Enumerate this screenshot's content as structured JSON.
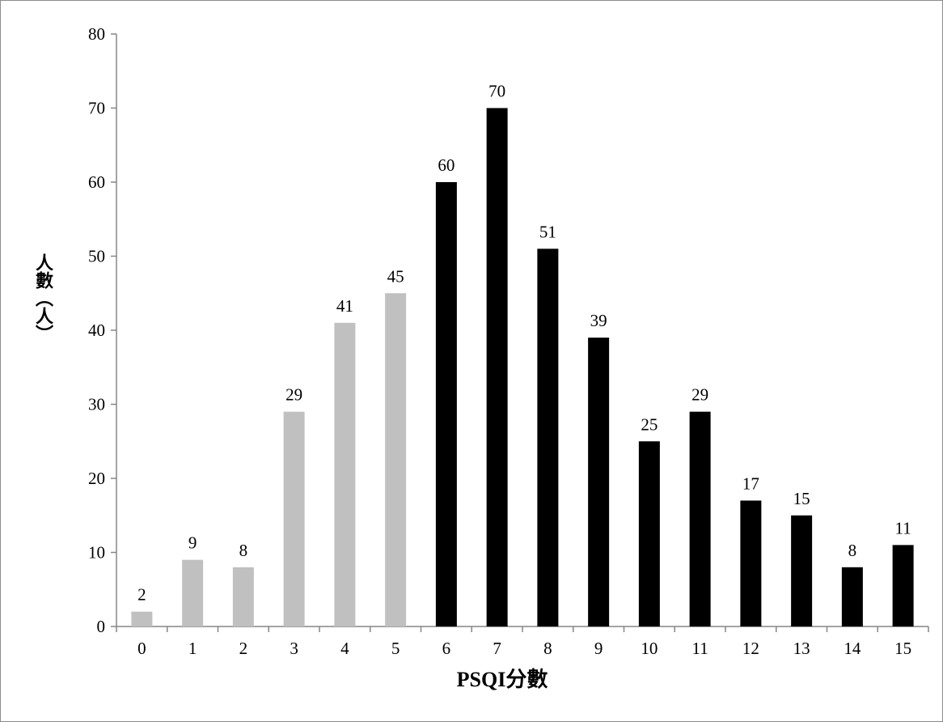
{
  "chart_data": {
    "type": "bar",
    "title": "",
    "xlabel": "PSQI分數",
    "ylabel": "人數（人）",
    "ylim": [
      0,
      80
    ],
    "yticks": [
      0,
      10,
      20,
      30,
      40,
      50,
      60,
      70,
      80
    ],
    "grid": false,
    "legend": "none",
    "categories": [
      "0",
      "1",
      "2",
      "3",
      "4",
      "5",
      "6",
      "7",
      "8",
      "9",
      "10",
      "11",
      "12",
      "13",
      "14",
      "15"
    ],
    "values": [
      2,
      9,
      8,
      29,
      41,
      45,
      60,
      70,
      51,
      39,
      25,
      29,
      17,
      15,
      8,
      11
    ],
    "bar_colors": [
      "#c0c0c0",
      "#c0c0c0",
      "#c0c0c0",
      "#c0c0c0",
      "#c0c0c0",
      "#c0c0c0",
      "#000000",
      "#000000",
      "#000000",
      "#000000",
      "#000000",
      "#000000",
      "#000000",
      "#000000",
      "#000000",
      "#000000"
    ],
    "data_labels": true
  }
}
